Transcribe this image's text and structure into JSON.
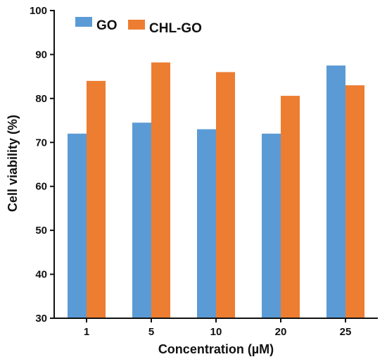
{
  "chart_data": {
    "type": "bar",
    "title": "",
    "xlabel": "Concentration (µM)",
    "ylabel": "Cell viability (%)",
    "categories": [
      "1",
      "5",
      "10",
      "20",
      "25"
    ],
    "series": [
      {
        "name": "GO",
        "color": "#5b9bd5",
        "values": [
          72,
          74.5,
          73,
          72,
          87.5
        ]
      },
      {
        "name": "CHL-GO",
        "color": "#ed7d31",
        "values": [
          84,
          88.2,
          86,
          80.6,
          83
        ]
      }
    ],
    "ylim": [
      30,
      100
    ],
    "yticks": [
      30,
      40,
      50,
      60,
      70,
      80,
      90,
      100
    ],
    "grid": false,
    "legend": "top-left"
  }
}
